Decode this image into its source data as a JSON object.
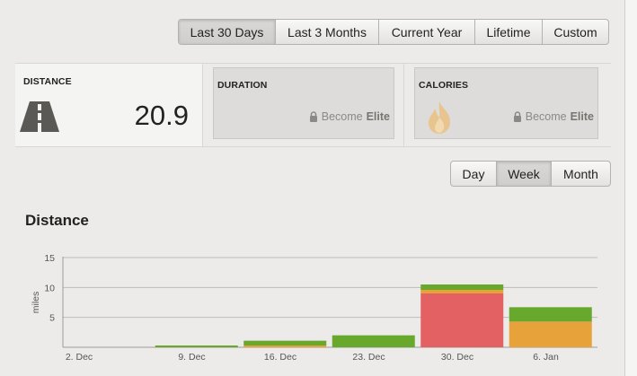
{
  "range_tabs": [
    {
      "label": "Last 30 Days",
      "active": true
    },
    {
      "label": "Last 3 Months",
      "active": false
    },
    {
      "label": "Current Year",
      "active": false
    },
    {
      "label": "Lifetime",
      "active": false
    },
    {
      "label": "Custom",
      "active": false
    }
  ],
  "stats": {
    "distance": {
      "title": "DISTANCE",
      "value": "20.9",
      "icon": "road-icon"
    },
    "duration": {
      "title": "DURATION",
      "upsell_prefix": "Become",
      "upsell_bold": "Elite",
      "icon": "lock-icon"
    },
    "calories": {
      "title": "CALORIES",
      "upsell_prefix": "Become",
      "upsell_bold": "Elite",
      "icon": "flame-icon"
    }
  },
  "view_tabs": [
    {
      "label": "Day",
      "active": false
    },
    {
      "label": "Week",
      "active": true
    },
    {
      "label": "Month",
      "active": false
    }
  ],
  "section_title": "Distance",
  "colors": {
    "green": "#67a82d",
    "orange": "#e7a23a",
    "red": "#e46163"
  },
  "chart_data": {
    "type": "bar",
    "stacked": true,
    "ylabel": "miles",
    "ylim": [
      0,
      15
    ],
    "yticks": [
      "5",
      "10",
      "15"
    ],
    "grid": true,
    "categories": [
      "2. Dec",
      "9. Dec",
      "16. Dec",
      "23. Dec",
      "30. Dec",
      "6. Jan"
    ],
    "series": [
      {
        "color": "#e46163",
        "values": [
          0,
          0,
          0,
          0,
          9.0,
          0
        ]
      },
      {
        "color": "#e7a23a",
        "values": [
          0,
          0,
          0.3,
          0,
          0.6,
          4.3
        ]
      },
      {
        "color": "#67a82d",
        "values": [
          0,
          0.3,
          0.8,
          2.0,
          0.9,
          2.4
        ]
      }
    ]
  }
}
